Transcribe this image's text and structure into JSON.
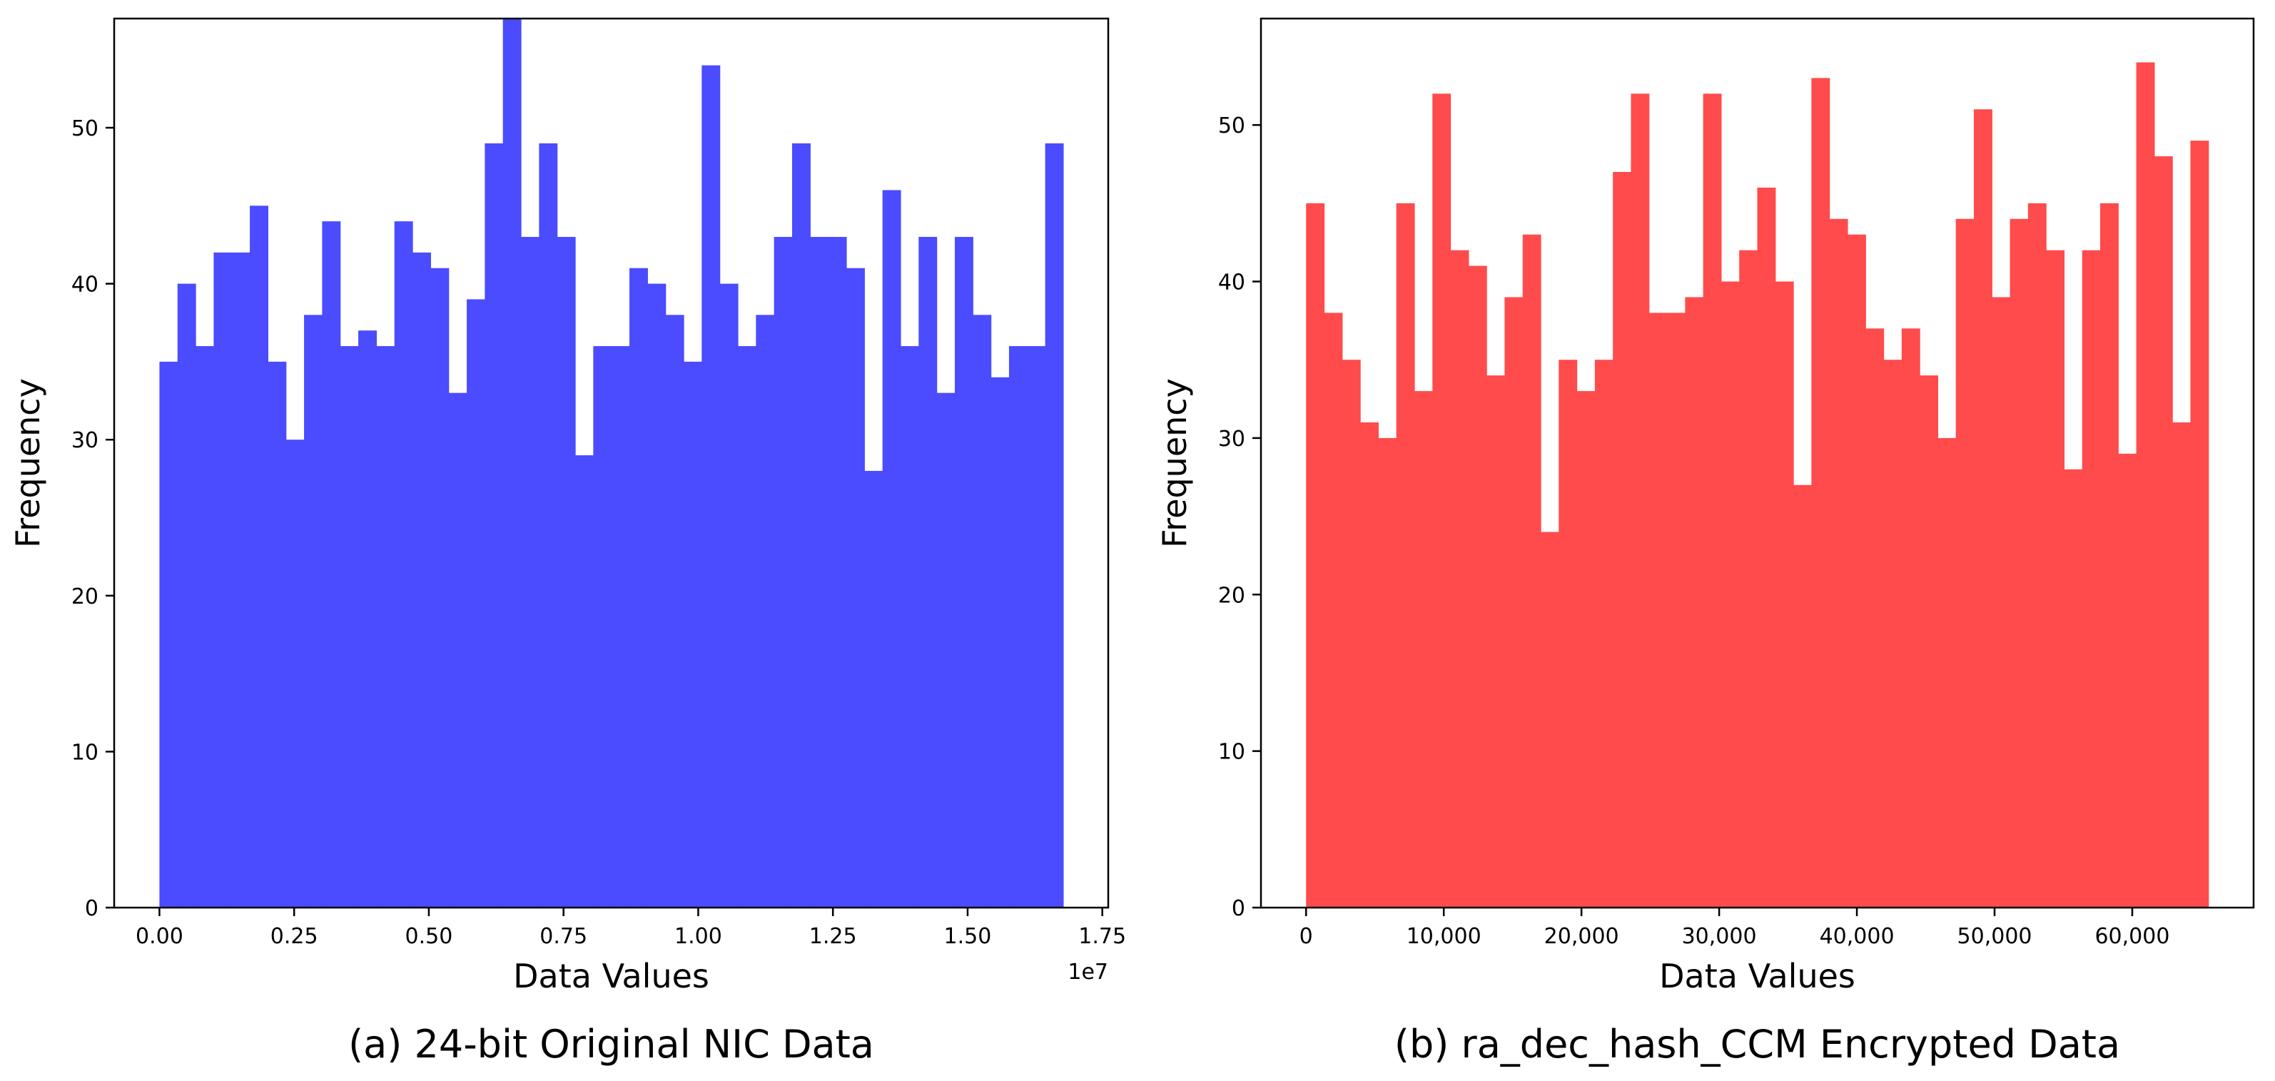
{
  "chart_data": [
    {
      "type": "bar",
      "histogram": true,
      "color": "#4B4BFF",
      "caption": "(a) 24-bit Original NIC Data",
      "xlabel": "Data Values",
      "ylabel": "Frequency",
      "x_offset_label": "1e7",
      "xlim": [
        -0.084,
        1.761
      ],
      "ylim": [
        0,
        57
      ],
      "bin_start": 0.0,
      "bin_width": 0.03355,
      "values": [
        35,
        40,
        36,
        42,
        42,
        45,
        35,
        30,
        38,
        44,
        36,
        37,
        36,
        44,
        42,
        41,
        33,
        39,
        49,
        57,
        43,
        49,
        43,
        29,
        36,
        36,
        41,
        40,
        38,
        35,
        54,
        40,
        36,
        38,
        43,
        49,
        43,
        43,
        41,
        28,
        46,
        36,
        43,
        33,
        43,
        38,
        34,
        36,
        36,
        49
      ],
      "x_ticks": [
        0.0,
        0.25,
        0.5,
        0.75,
        1.0,
        1.25,
        1.5,
        1.75
      ],
      "x_tick_labels": [
        "0.00",
        "0.25",
        "0.50",
        "0.75",
        "1.00",
        "1.25",
        "1.50",
        "1.75"
      ],
      "y_ticks": [
        0,
        10,
        20,
        30,
        40,
        50
      ],
      "y_tick_labels": [
        "0",
        "10",
        "20",
        "30",
        "40",
        "50"
      ]
    },
    {
      "type": "bar",
      "histogram": true,
      "color": "#FF4B4B",
      "caption": "(b) ra_dec_hash_CCM Encrypted Data",
      "xlabel": "Data Values",
      "ylabel": "Frequency",
      "xlim": [
        -3277,
        68812
      ],
      "ylim": [
        0,
        56.8
      ],
      "bin_start": 0,
      "bin_width": 1310.7,
      "values": [
        45,
        38,
        35,
        31,
        30,
        45,
        33,
        52,
        42,
        41,
        34,
        39,
        43,
        24,
        35,
        33,
        35,
        47,
        52,
        38,
        38,
        39,
        52,
        40,
        42,
        46,
        40,
        27,
        53,
        44,
        43,
        37,
        35,
        37,
        34,
        30,
        44,
        51,
        39,
        44,
        45,
        42,
        28,
        42,
        45,
        29,
        54,
        48,
        31,
        49
      ],
      "x_ticks": [
        0,
        10000,
        20000,
        30000,
        40000,
        50000,
        60000
      ],
      "x_tick_labels": [
        "0",
        "10,000",
        "20,000",
        "30,000",
        "40,000",
        "50,000",
        "60,000"
      ],
      "y_ticks": [
        0,
        10,
        20,
        30,
        40,
        50
      ],
      "y_tick_labels": [
        "0",
        "10",
        "20",
        "30",
        "40",
        "50"
      ]
    }
  ]
}
